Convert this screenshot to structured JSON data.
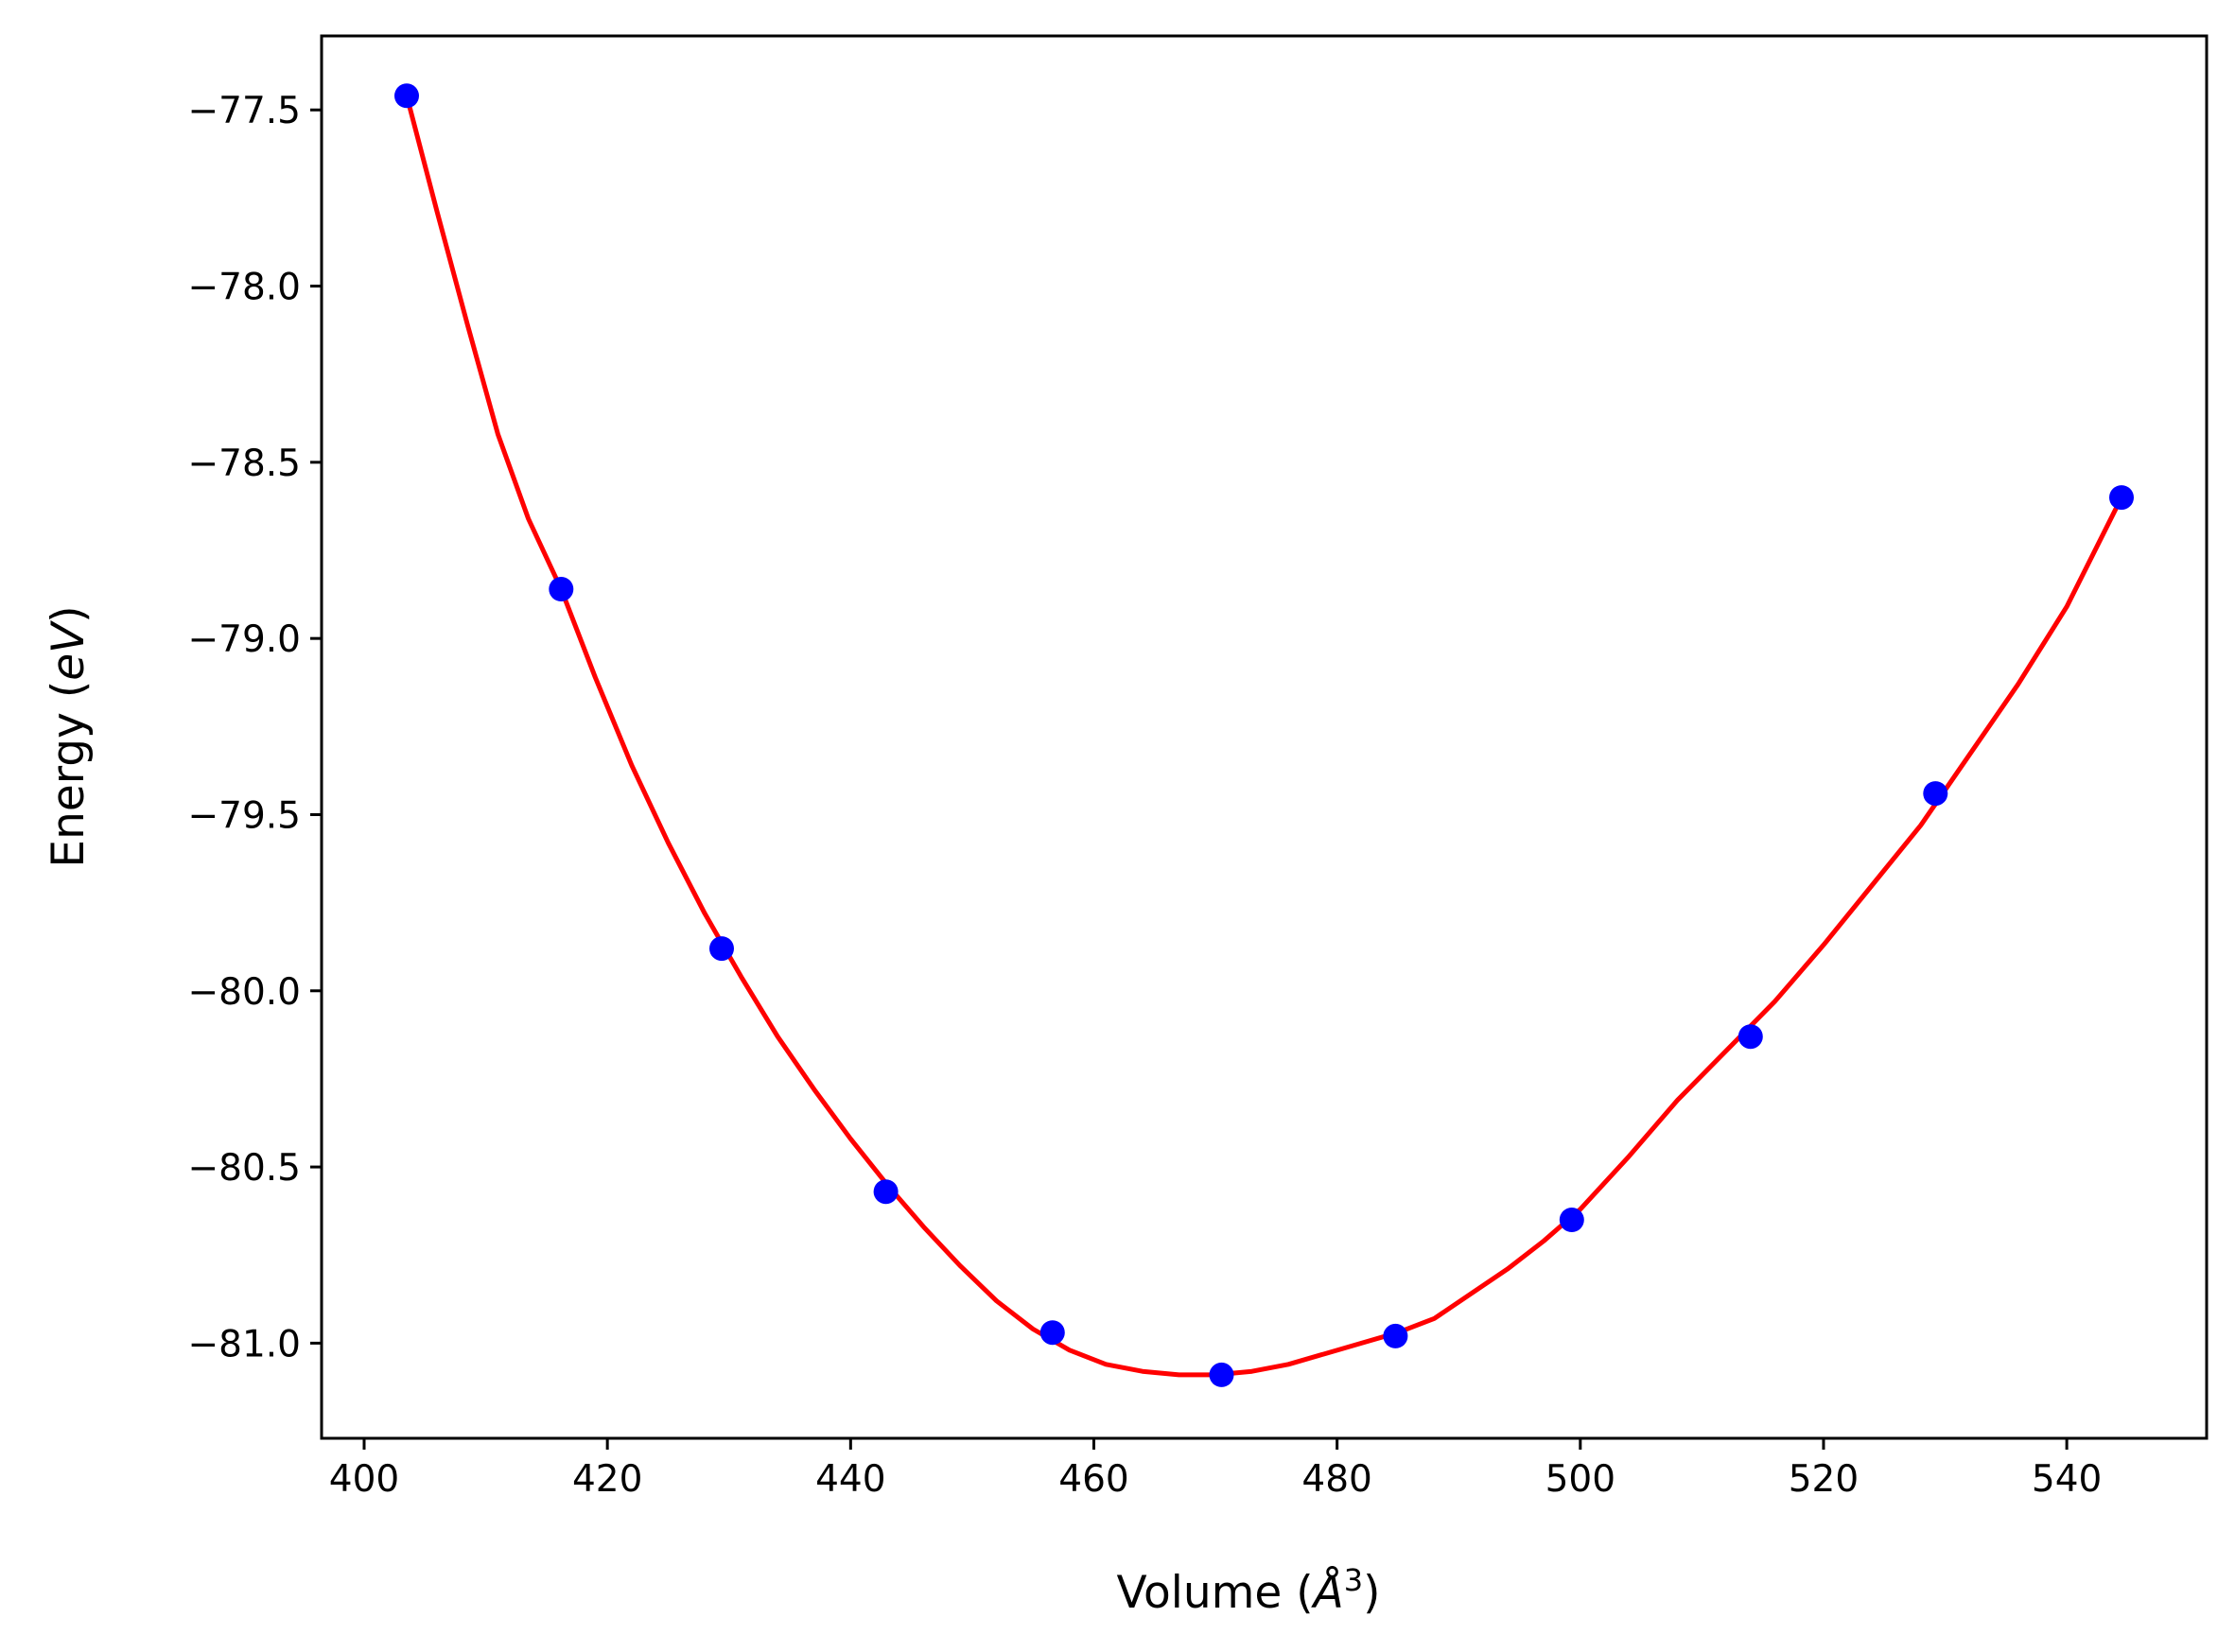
{
  "chart_data": {
    "type": "scatter",
    "title": "",
    "xlabel": "Volume",
    "xlabel_unit": "Å",
    "xlabel_unit_exponent": "3",
    "ylabel": "Energy",
    "ylabel_unit": "eV",
    "xlim": [
      396.5,
      551.5
    ],
    "ylim": [
      -81.27,
      -77.29
    ],
    "xticks": [
      400,
      420,
      440,
      460,
      480,
      500,
      520,
      540
    ],
    "xtick_labels": [
      "400",
      "420",
      "440",
      "460",
      "480",
      "500",
      "520",
      "540"
    ],
    "yticks": [
      -77.5,
      -78.0,
      -78.5,
      -79.0,
      -79.5,
      -80.0,
      -80.5,
      -81.0
    ],
    "ytick_labels": [
      "−77.5",
      "−78.0",
      "−78.5",
      "−79.0",
      "−79.5",
      "−80.0",
      "−80.5",
      "−81.0"
    ],
    "grid": false,
    "series": [
      {
        "kind": "points",
        "color": "#0000ff",
        "x": [
          403.5,
          416.2,
          429.4,
          442.9,
          456.6,
          470.5,
          484.8,
          499.3,
          514.0,
          529.2,
          544.5
        ],
        "y": [
          -77.46,
          -78.86,
          -79.88,
          -80.57,
          -80.97,
          -81.09,
          -80.98,
          -80.65,
          -80.13,
          -79.44,
          -78.6
        ]
      },
      {
        "kind": "fit-curve",
        "color": "#ff0000",
        "x": [
          403.5,
          406.0,
          408.5,
          411.0,
          413.5,
          416.2,
          419.0,
          422.0,
          425.0,
          428.0,
          431.0,
          434.0,
          437.0,
          440.0,
          443.0,
          446.0,
          449.0,
          452.0,
          455.0,
          458.0,
          461.0,
          464.0,
          467.0,
          470.0,
          473.0,
          476.0,
          479.0,
          482.0,
          485.0,
          488.0,
          491.0,
          494.0,
          497.0,
          500.0,
          504.0,
          508.0,
          512.0,
          516.0,
          520.0,
          524.0,
          528.0,
          532.0,
          536.0,
          540.0,
          544.5
        ],
        "y": [
          -77.46,
          -77.79,
          -78.11,
          -78.42,
          -78.66,
          -78.86,
          -79.11,
          -79.36,
          -79.58,
          -79.78,
          -79.96,
          -80.13,
          -80.28,
          -80.42,
          -80.55,
          -80.67,
          -80.78,
          -80.88,
          -80.96,
          -81.02,
          -81.06,
          -81.08,
          -81.09,
          -81.09,
          -81.08,
          -81.06,
          -81.03,
          -81.0,
          -80.97,
          -80.93,
          -80.86,
          -80.79,
          -80.71,
          -80.62,
          -80.47,
          -80.31,
          -80.17,
          -80.03,
          -79.87,
          -79.7,
          -79.53,
          -79.33,
          -79.13,
          -78.91,
          -78.6
        ]
      }
    ]
  }
}
